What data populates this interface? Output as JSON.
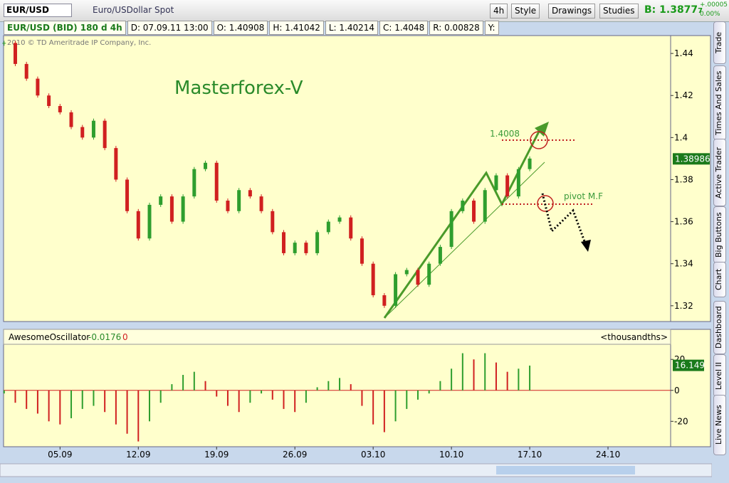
{
  "toolbar": {
    "symbol": "EUR/USD",
    "description": "Euro/USDollar Spot",
    "aggregation": "4h",
    "style": "Style",
    "drawings": "Drawings",
    "studies": "Studies",
    "bid": "B: 1.3877",
    "bid_fraction": "7",
    "change": "+.00005",
    "change_percent": "0.00%"
  },
  "info_bar": [
    "EUR/USD (BID) 180 d 4h",
    "D: 07.09.11 13:00",
    "O: 1.40908",
    "H: 1.41042",
    "L: 1.40214",
    "C: 1.4048",
    "R: 0.00828",
    "Y:"
  ],
  "side_tabs": [
    "Trade",
    "Times And Sales",
    "Active Trader",
    "Big Buttons",
    "Chart",
    "Dashboard",
    "Level II",
    "Live News"
  ],
  "chart_data": [
    {
      "type": "candlestick",
      "watermark": "2010 © TD Ameritrade IP Company, Inc.",
      "annotations": [
        "Masterforex-V",
        "1.4008",
        "pivot M.F"
      ],
      "x": [
        -5,
        -4,
        -3,
        -2,
        -1,
        0,
        1,
        2,
        3,
        4,
        5,
        6,
        7,
        8,
        9,
        10,
        11,
        12,
        13,
        14,
        15,
        16,
        17,
        18,
        19,
        20,
        21,
        22,
        23,
        24,
        25,
        26,
        27,
        28,
        29,
        30,
        31,
        32,
        33,
        34,
        35,
        36,
        37,
        38,
        39,
        40,
        41,
        42
      ],
      "values": [
        1.445,
        1.435,
        1.428,
        1.42,
        1.415,
        1.412,
        1.405,
        1.4,
        1.408,
        1.395,
        1.38,
        1.365,
        1.352,
        1.368,
        1.372,
        1.36,
        1.372,
        1.385,
        1.388,
        1.37,
        1.365,
        1.375,
        1.372,
        1.365,
        1.355,
        1.345,
        1.35,
        1.345,
        1.355,
        1.36,
        1.362,
        1.352,
        1.34,
        1.325,
        1.32,
        1.335,
        1.337,
        1.33,
        1.34,
        1.348,
        1.365,
        1.37,
        1.36,
        1.375,
        1.382,
        1.372,
        1.385,
        1.39
      ],
      "up_color": "#2e9e2e",
      "down_color": "#d02020",
      "last_price": 1.38986,
      "xlim": [
        -5.05,
        54.6
      ],
      "ylim": [
        1.3125,
        1.4485
      ],
      "yticks": [
        1.44,
        1.42,
        1.4,
        1.38,
        1.36,
        1.34,
        1.32
      ]
    },
    {
      "type": "bar",
      "name": "AwesomeOscillator",
      "header_values": [
        -0.0176,
        0
      ],
      "units_label": "<thousandths>",
      "x": [
        -5,
        -4,
        -3,
        -2,
        -1,
        0,
        1,
        2,
        3,
        4,
        5,
        6,
        7,
        8,
        9,
        10,
        11,
        12,
        13,
        14,
        15,
        16,
        17,
        18,
        19,
        20,
        21,
        22,
        23,
        24,
        25,
        26,
        27,
        28,
        29,
        30,
        31,
        32,
        33,
        34,
        35,
        36,
        37,
        38,
        39,
        40,
        41,
        42
      ],
      "values": [
        -2,
        -8,
        -12,
        -15,
        -20,
        -22,
        -18,
        -12,
        -10,
        -14,
        -22,
        -28,
        -33,
        -20,
        -8,
        4,
        10,
        12,
        6,
        -4,
        -10,
        -14,
        -8,
        -2,
        -6,
        -12,
        -14,
        -8,
        2,
        6,
        8,
        4,
        -10,
        -22,
        -27,
        -20,
        -12,
        -6,
        -2,
        6,
        14,
        24,
        20,
        24,
        18,
        12,
        14,
        16
      ],
      "up_color": "#2e9e2e",
      "down_color": "#d02020",
      "zero_color": "#d02020",
      "last_value": 16.149,
      "xlim": [
        -5.05,
        54.6
      ],
      "ylim": [
        -36.4,
        29.3
      ],
      "yticks": [
        20,
        0,
        -20
      ],
      "xticks": [
        {
          "value": 0,
          "label": "05.09"
        },
        {
          "value": 7,
          "label": "12.09"
        },
        {
          "value": 14,
          "label": "19.09"
        },
        {
          "value": 21,
          "label": "26.09"
        },
        {
          "value": 28,
          "label": "03.10"
        },
        {
          "value": 35,
          "label": "10.10"
        },
        {
          "value": 42,
          "label": "17.10"
        },
        {
          "value": 49,
          "label": "24.10"
        }
      ]
    }
  ]
}
